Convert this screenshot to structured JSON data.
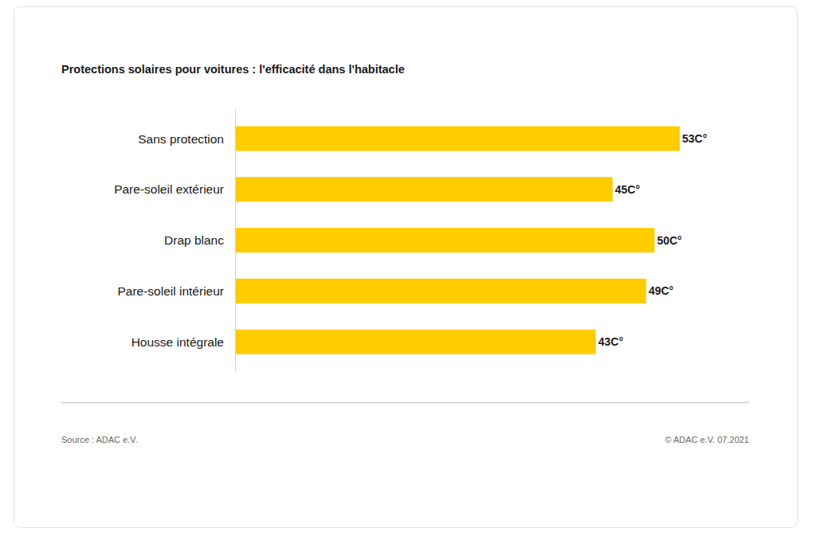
{
  "chart_data": {
    "type": "bar",
    "title": "Protections solaires pour voitures : l'efficacité dans l'habitacle",
    "categories": [
      "Sans protection",
      "Pare-soleil extérieur",
      "Drap blanc",
      "Pare-soleil intérieur",
      "Housse intégrale"
    ],
    "values": [
      53,
      45,
      50,
      49,
      43
    ],
    "value_labels": [
      "53C°",
      "45C°",
      "50C°",
      "49C°",
      "43C°"
    ],
    "color": "#ffcc00",
    "orientation": "horizontal",
    "data_labels": true,
    "grid": false,
    "tick_labels": "y",
    "xlim": [
      0,
      53
    ],
    "annotations": [
      "Source : ADAC e.V.",
      "© ADAC e.V. 07.2021"
    ]
  }
}
